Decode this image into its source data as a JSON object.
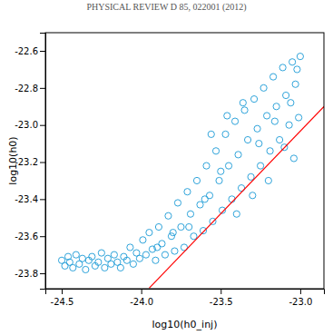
{
  "chart_data": {
    "type": "scatter",
    "title": "PHYSICAL REVIEW D 85, 022001 (2012)",
    "x_label": "log10(h0_inj)",
    "y_label": "log10(h0)",
    "xlim": [
      -24.603,
      -22.851
    ],
    "ylim": [
      -23.883,
      -22.502
    ],
    "xticks": [
      -24.5,
      {
        "value": -24,
        "label": "-24.0"
      },
      -23.5,
      {
        "value": -23,
        "label": "-23.0"
      }
    ],
    "yticks": [
      -23.8,
      -23.6,
      -23.4,
      -23.2,
      {
        "value": -23,
        "label": "-23.0"
      },
      -22.8,
      -22.6
    ],
    "series": [
      {
        "type": "scatter",
        "marker": "open-circle",
        "color": "#1a9ad6",
        "x": [
          -24.5,
          -24.48,
          -24.46,
          -24.45,
          -24.43,
          -24.41,
          -24.39,
          -24.37,
          -24.35,
          -24.33,
          -24.31,
          -24.29,
          -24.27,
          -24.25,
          -24.23,
          -24.21,
          -24.19,
          -24.17,
          -24.15,
          -24.13,
          -24.11,
          -24.09,
          -24.07,
          -24.05,
          -24.03,
          -24.01,
          -23.99,
          -23.97,
          -23.95,
          -23.93,
          -23.91,
          -23.89,
          -23.87,
          -23.85,
          -23.83,
          -23.81,
          -23.79,
          -23.77,
          -23.75,
          -23.73,
          -23.71,
          -23.69,
          -23.67,
          -23.65,
          -23.63,
          -23.61,
          -23.59,
          -23.57,
          -23.55,
          -23.53,
          -23.51,
          -23.49,
          -23.47,
          -23.45,
          -23.43,
          -23.41,
          -23.39,
          -23.37,
          -23.35,
          -23.33,
          -23.31,
          -23.29,
          -23.27,
          -23.25,
          -23.23,
          -23.21,
          -23.19,
          -23.17,
          -23.15,
          -23.13,
          -23.11,
          -23.09,
          -23.07,
          -23.05,
          -23.03,
          -23.01,
          -23.0,
          -23.02,
          -23.04,
          -23.1,
          -23.2,
          -23.3,
          -23.4,
          -23.5,
          -23.6,
          -23.7,
          -23.8,
          -23.9,
          -23.56,
          -23.46,
          -23.36,
          -23.26,
          -23.16,
          -23.06
        ],
        "values": [
          -23.73,
          -23.76,
          -23.71,
          -23.74,
          -23.77,
          -23.7,
          -23.75,
          -23.72,
          -23.78,
          -23.73,
          -23.71,
          -23.76,
          -23.74,
          -23.69,
          -23.77,
          -23.72,
          -23.75,
          -23.7,
          -23.74,
          -23.77,
          -23.71,
          -23.73,
          -23.66,
          -23.75,
          -23.69,
          -23.72,
          -23.62,
          -23.7,
          -23.58,
          -23.67,
          -23.73,
          -23.55,
          -23.64,
          -23.7,
          -23.49,
          -23.6,
          -23.68,
          -23.42,
          -23.55,
          -23.66,
          -23.36,
          -23.48,
          -23.6,
          -23.3,
          -23.43,
          -23.57,
          -23.22,
          -23.38,
          -23.52,
          -23.14,
          -23.3,
          -23.46,
          -23.05,
          -23.22,
          -23.4,
          -22.98,
          -23.16,
          -23.34,
          -22.92,
          -23.08,
          -23.28,
          -22.86,
          -23.02,
          -23.22,
          -22.8,
          -22.95,
          -23.14,
          -22.74,
          -22.9,
          -23.08,
          -22.69,
          -22.84,
          -23.0,
          -22.66,
          -22.78,
          -22.96,
          -22.63,
          -22.7,
          -23.18,
          -23.12,
          -23.3,
          -23.38,
          -23.48,
          -23.25,
          -23.4,
          -23.55,
          -23.58,
          -23.66,
          -23.05,
          -22.95,
          -22.88,
          -23.1,
          -22.98,
          -22.88
        ]
      },
      {
        "type": "line",
        "line_style": "solid",
        "color": "#ff0000",
        "x": [
          -23.95,
          -22.85
        ],
        "values": [
          -23.88,
          -22.9
        ]
      }
    ]
  }
}
